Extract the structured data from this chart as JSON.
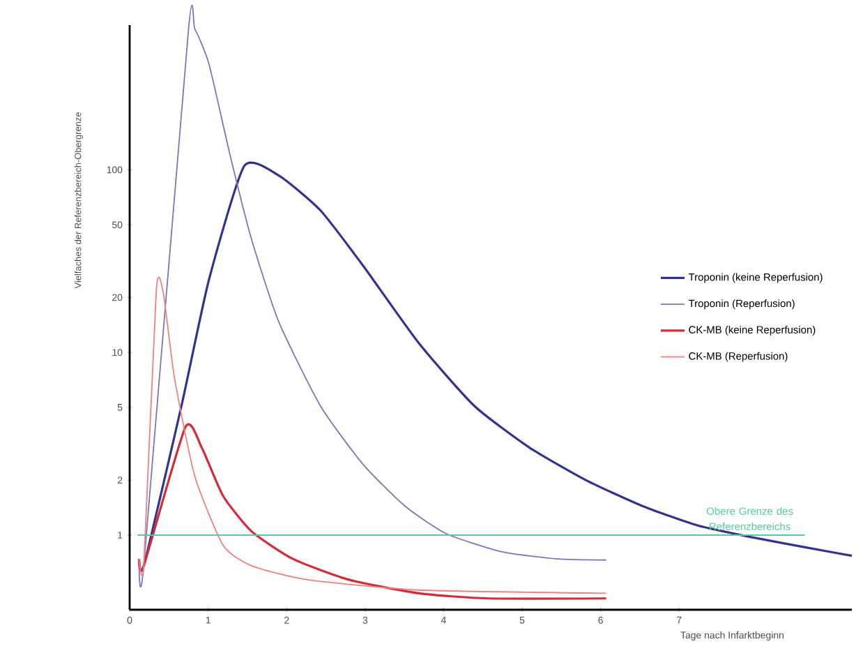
{
  "chart_data": {
    "type": "line",
    "xlabel": "Tage nach Infarktbeginn",
    "ylabel": "Vielfaches der Referenzbereich-Obergrenze",
    "log": "y",
    "legend": "right",
    "xlim": [
      0,
      9.2
    ],
    "ylim": [
      0.39,
      620
    ],
    "xticks": [
      0,
      1,
      2,
      3,
      4,
      5,
      6,
      7
    ],
    "yticks": [
      1,
      2,
      5,
      10,
      20,
      50,
      100
    ],
    "series": [
      {
        "name": "Troponin (keine Reperfusion)",
        "color": "#33338f",
        "x": [
          0.12,
          0.18,
          0.66,
          1.01,
          1.46,
          1.9,
          2.43,
          2.97,
          3.68,
          4.39,
          5.1,
          5.81,
          6.52,
          7.23,
          7.94,
          8.65,
          9.2
        ],
        "values": [
          0.74,
          0.68,
          5.1,
          25,
          105,
          93,
          60,
          30,
          11.3,
          5.1,
          3.0,
          2.0,
          1.45,
          1.13,
          0.97,
          0.85,
          0.77
        ]
      },
      {
        "name": "Troponin (Reperfusion)",
        "color": "#7777bb",
        "x": [
          0.12,
          0.18,
          0.75,
          0.83,
          1.01,
          1.28,
          1.55,
          1.9,
          2.43,
          2.97,
          3.5,
          4.03,
          4.74,
          5.45,
          6.07
        ],
        "values": [
          0.74,
          0.68,
          590,
          590,
          380,
          120,
          42,
          14.7,
          5.1,
          2.45,
          1.45,
          1.02,
          0.81,
          0.74,
          0.73
        ]
      },
      {
        "name": "CK-MB (keine Reperfusion)",
        "color": "#d42a3a",
        "x": [
          0.12,
          0.18,
          0.71,
          0.92,
          1.19,
          1.55,
          2.08,
          2.79,
          3.68,
          4.56,
          6.07
        ],
        "values": [
          0.74,
          0.68,
          3.9,
          3.0,
          1.64,
          1.05,
          0.74,
          0.57,
          0.48,
          0.45,
          0.45
        ]
      },
      {
        "name": "CK-MB (Reperfusion)",
        "color": "#f08080",
        "x": [
          0.12,
          0.18,
          0.34,
          0.43,
          0.57,
          0.83,
          1.19,
          1.55,
          2.26,
          3.68,
          6.07
        ],
        "values": [
          0.74,
          0.68,
          22,
          21,
          7.3,
          2.1,
          0.88,
          0.68,
          0.57,
          0.5,
          0.48
        ]
      }
    ],
    "ref_lines": [
      {
        "axis": "y",
        "value": 1,
        "label": "Obere Grenze des Referenzbereichs",
        "color": "#55cc99"
      }
    ]
  }
}
